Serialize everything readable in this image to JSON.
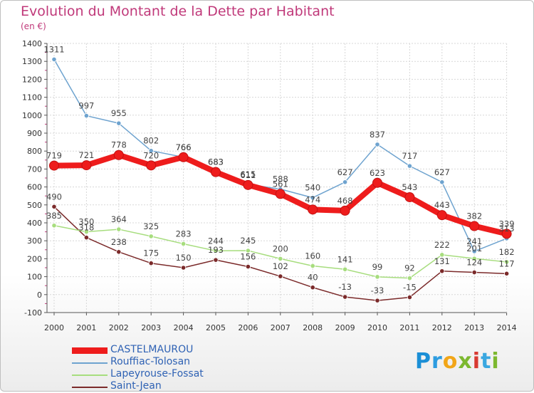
{
  "page": {
    "title": "Evolution du Montant de la Dette par Habitant",
    "subtitle": "(en €)",
    "logo": [
      "P",
      "r",
      "o",
      "x",
      "i",
      "t",
      "i"
    ],
    "logo_colors": [
      "#1b8fd6",
      "#2c9ce0",
      "#f2a618",
      "#7cb82f",
      "#d83a32",
      "#3aa7e0",
      "#7cb82f"
    ]
  },
  "chart_data": {
    "type": "line",
    "x": [
      "2000",
      "2001",
      "2002",
      "2003",
      "2004",
      "2005",
      "2006",
      "2007",
      "2008",
      "2009",
      "2010",
      "2011",
      "2012",
      "2013",
      "2014"
    ],
    "ylim": [
      -100,
      1400
    ],
    "yticks": [
      -100,
      0,
      100,
      200,
      300,
      400,
      500,
      600,
      700,
      800,
      900,
      1000,
      1100,
      1200,
      1300,
      1400
    ],
    "grid": true,
    "legend_position": "bottom-left",
    "series": [
      {
        "name": "CASTELMAUROU",
        "color": "#ee1c1c",
        "values": [
          719,
          721,
          778,
          720,
          766,
          683,
          611,
          561,
          474,
          468,
          623,
          543,
          443,
          382,
          339
        ]
      },
      {
        "name": "Rouffiac-Tolosan",
        "color": "#6ea3cf",
        "values": [
          1311,
          997,
          955,
          802,
          766,
          683,
          615,
          588,
          540,
          627,
          837,
          717,
          627,
          241,
          313
        ]
      },
      {
        "name": "Lapeyrouse-Fossat",
        "color": "#a7dd7e",
        "values": [
          385,
          350,
          364,
          325,
          283,
          244,
          245,
          200,
          160,
          141,
          99,
          92,
          222,
          201,
          182
        ]
      },
      {
        "name": "Saint-Jean",
        "color": "#7b2a2a",
        "values": [
          490,
          318,
          238,
          175,
          150,
          193,
          156,
          102,
          40,
          -13,
          -33,
          -15,
          131,
          124,
          117
        ]
      }
    ]
  }
}
